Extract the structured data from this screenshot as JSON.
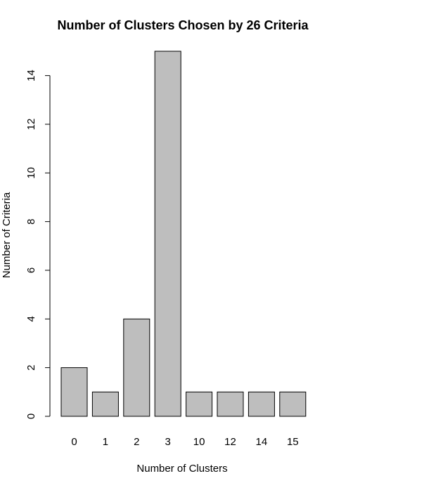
{
  "chart_data": {
    "type": "bar",
    "title": "Number of Clusters Chosen by 26 Criteria",
    "xlabel": "Number of Clusters",
    "ylabel": "Number of Criteria",
    "categories": [
      "0",
      "1",
      "2",
      "3",
      "10",
      "12",
      "14",
      "15"
    ],
    "values": [
      2,
      1,
      4,
      15,
      1,
      1,
      1,
      1
    ],
    "ylim": [
      0,
      15
    ],
    "yticks": [
      0,
      2,
      4,
      6,
      8,
      10,
      12,
      14
    ],
    "bar_color": "#bebebe",
    "grid": false
  }
}
